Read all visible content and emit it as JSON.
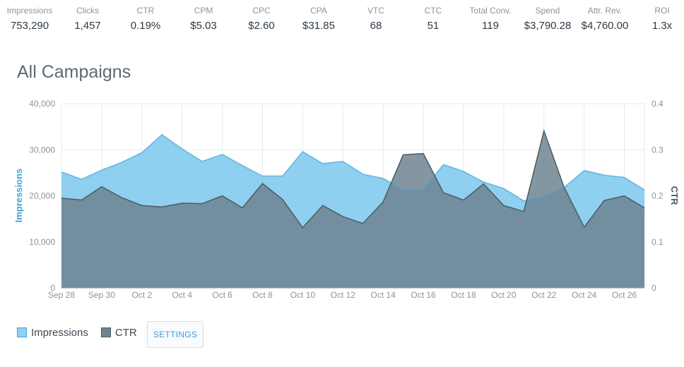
{
  "metrics": [
    {
      "label": "Impressions",
      "value": "753,290"
    },
    {
      "label": "Clicks",
      "value": "1,457"
    },
    {
      "label": "CTR",
      "value": "0.19%"
    },
    {
      "label": "CPM",
      "value": "$5.03"
    },
    {
      "label": "CPC",
      "value": "$2.60"
    },
    {
      "label": "CPA",
      "value": "$31.85"
    },
    {
      "label": "VTC",
      "value": "68"
    },
    {
      "label": "CTC",
      "value": "51"
    },
    {
      "label": "Total Conv.",
      "value": "119"
    },
    {
      "label": "Spend",
      "value": "$3,790.28"
    },
    {
      "label": "Attr. Rev.",
      "value": "$4,760.00"
    },
    {
      "label": "ROI",
      "value": "1.3x"
    }
  ],
  "page": {
    "title": "All Campaigns",
    "settings_label": "SETTINGS"
  },
  "colors": {
    "impressions_fill": "#8fcfef",
    "impressions_line": "#3da3db",
    "ctr_fill": "#6e8490",
    "ctr_line": "#4a5c67",
    "grid": "#e6eaed"
  },
  "chart_data": {
    "type": "area",
    "x": [
      "Sep 28",
      "Sep 29",
      "Sep 30",
      "Oct 1",
      "Oct 2",
      "Oct 3",
      "Oct 4",
      "Oct 5",
      "Oct 6",
      "Oct 7",
      "Oct 8",
      "Oct 9",
      "Oct 10",
      "Oct 11",
      "Oct 12",
      "Oct 13",
      "Oct 14",
      "Oct 15",
      "Oct 16",
      "Oct 17",
      "Oct 18",
      "Oct 19",
      "Oct 20",
      "Oct 21",
      "Oct 22",
      "Oct 23",
      "Oct 24",
      "Oct 25",
      "Oct 26",
      "Oct 27"
    ],
    "x_tick_labels": [
      "Sep 28",
      "Sep 30",
      "Oct 2",
      "Oct 4",
      "Oct 6",
      "Oct 8",
      "Oct 10",
      "Oct 12",
      "Oct 14",
      "Oct 16",
      "Oct 18",
      "Oct 20",
      "Oct 22",
      "Oct 24",
      "Oct 26"
    ],
    "series": [
      {
        "name": "Impressions",
        "axis": "left",
        "values": [
          25200,
          23600,
          25600,
          27300,
          29400,
          33300,
          30200,
          27500,
          29000,
          26600,
          24300,
          24300,
          29600,
          27000,
          27500,
          24700,
          23800,
          21300,
          21400,
          26800,
          25300,
          23000,
          21600,
          18900,
          19800,
          21800,
          25500,
          24500,
          24000,
          21300
        ]
      },
      {
        "name": "CTR",
        "axis": "right",
        "values": [
          0.195,
          0.191,
          0.22,
          0.196,
          0.179,
          0.176,
          0.184,
          0.183,
          0.2,
          0.174,
          0.227,
          0.192,
          0.131,
          0.179,
          0.155,
          0.14,
          0.187,
          0.289,
          0.292,
          0.207,
          0.191,
          0.226,
          0.179,
          0.166,
          0.341,
          0.219,
          0.132,
          0.19,
          0.2,
          0.174
        ]
      }
    ],
    "ylabel": "Impressions",
    "y2label": "CTR",
    "ylim": [
      0,
      40000
    ],
    "y2lim": [
      0,
      0.4
    ],
    "yticks": [
      0,
      10000,
      20000,
      30000,
      40000
    ],
    "y_tick_labels": [
      "0",
      "10,000",
      "20,000",
      "30,000",
      "40,000"
    ],
    "y2ticks": [
      0,
      0.1,
      0.2,
      0.3,
      0.4
    ],
    "y2_tick_labels": [
      "0",
      "0.1",
      "0.2",
      "0.3",
      "0.4"
    ],
    "grid": true,
    "legend": "bottom-left"
  }
}
